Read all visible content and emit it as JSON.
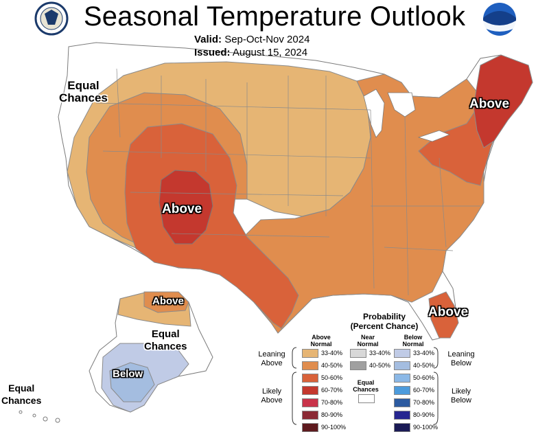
{
  "title": "Seasonal Temperature Outlook",
  "valid": {
    "label": "Valid:",
    "value": "Sep-Oct-Nov 2024"
  },
  "issued": {
    "label": "Issued:",
    "value": "August 15, 2024"
  },
  "logos": {
    "left": "Department of Commerce seal",
    "right": "NOAA"
  },
  "map_labels": {
    "above_west": "Above",
    "above_northeast": "Above",
    "above_florida": "Above",
    "above_alaska": "Above",
    "equal_chances_northwest": [
      "Equal",
      "Chances"
    ],
    "equal_chances_alaska": [
      "Equal",
      "Chances"
    ],
    "equal_chances_hawaii": [
      "Equal",
      "Chances"
    ],
    "below_alaska": "Below"
  },
  "colors": {
    "above_33_40": "#e6b574",
    "above_40_50": "#e08d4e",
    "above_50_60": "#d9623a",
    "above_60_70": "#c4382e",
    "above_70_80": "#c9334a",
    "above_80_90": "#8b2a35",
    "above_90_100": "#5e1a1e",
    "near_33_40": "#d8d8d8",
    "near_40_50": "#a0a0a0",
    "below_33_40": "#c0cbe6",
    "below_40_50": "#a4bde0",
    "below_50_60": "#8bb8e6",
    "below_60_70": "#4c9bdc",
    "below_70_80": "#2c5aa0",
    "below_80_90": "#262690",
    "below_90_100": "#1a1a55"
  },
  "legend": {
    "title_line1": "Probability",
    "title_line2": "(Percent Chance)",
    "col_above": [
      "Above",
      "Normal"
    ],
    "col_near": [
      "Near",
      "Normal"
    ],
    "col_below": [
      "Below",
      "Normal"
    ],
    "above_rows": [
      "33-40%",
      "40-50%",
      "50-60%",
      "60-70%",
      "70-80%",
      "80-90%",
      "90-100%"
    ],
    "near_rows": [
      "33-40%",
      "40-50%"
    ],
    "below_rows": [
      "33-40%",
      "40-50%",
      "50-60%",
      "60-70%",
      "70-80%",
      "80-90%",
      "90-100%"
    ],
    "equal_chances": [
      "Equal",
      "Chances"
    ],
    "leaning_above": [
      "Leaning",
      "Above"
    ],
    "likely_above": [
      "Likely",
      "Above"
    ],
    "leaning_below": [
      "Leaning",
      "Below"
    ],
    "likely_below": [
      "Likely",
      "Below"
    ]
  }
}
